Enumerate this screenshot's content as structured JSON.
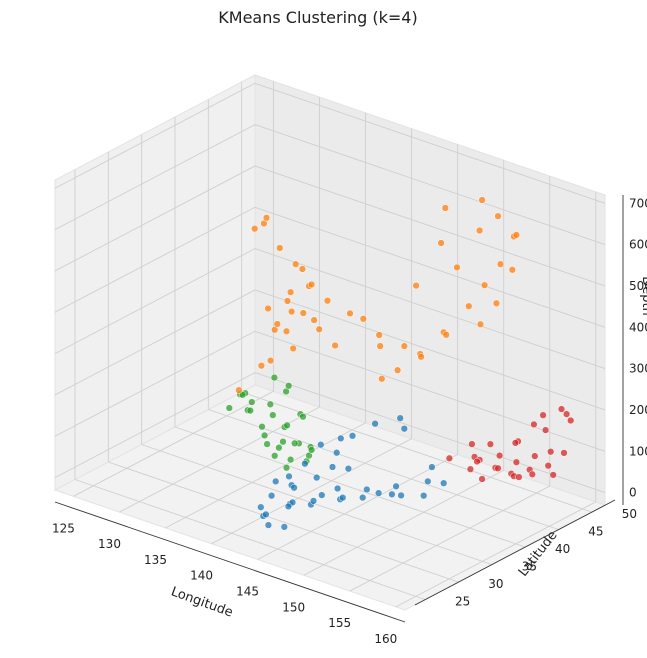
{
  "chart_data": {
    "type": "scatter",
    "projection": "3d",
    "title": "KMeans Clustering (k=4)",
    "xlabel": "Longitude",
    "ylabel": "Latitude",
    "zlabel": "Depth",
    "xlim": [
      123,
      161
    ],
    "ylim": [
      22,
      52
    ],
    "zlim": [
      -30,
      720
    ],
    "xticks": [
      125,
      130,
      135,
      140,
      145,
      150,
      155,
      160
    ],
    "yticks": [
      25,
      30,
      35,
      40,
      45,
      50
    ],
    "zticks": [
      0,
      100,
      200,
      300,
      400,
      500,
      600,
      700
    ],
    "grid": true,
    "series": [
      {
        "color": "#2ca02c",
        "points": [
          [
            125,
            47,
            5
          ],
          [
            127,
            46,
            10
          ],
          [
            128,
            44,
            15
          ],
          [
            126,
            44,
            5
          ],
          [
            129,
            46,
            20
          ],
          [
            130,
            45,
            10
          ],
          [
            132,
            44,
            5
          ],
          [
            133,
            43,
            25
          ],
          [
            131,
            42,
            15
          ],
          [
            134,
            41,
            10
          ],
          [
            135,
            42,
            5
          ],
          [
            136,
            40,
            30
          ],
          [
            137,
            41,
            20
          ],
          [
            138,
            39,
            10
          ],
          [
            139,
            38,
            40
          ],
          [
            136,
            37,
            25
          ],
          [
            133,
            45,
            35
          ],
          [
            130,
            47,
            50
          ],
          [
            128,
            48,
            60
          ],
          [
            131,
            46,
            80
          ],
          [
            134,
            44,
            45
          ],
          [
            137,
            38,
            15
          ],
          [
            135,
            39,
            20
          ],
          [
            132,
            41,
            10
          ],
          [
            129,
            43,
            30
          ],
          [
            127,
            45,
            40
          ],
          [
            126,
            46,
            20
          ],
          [
            133,
            40,
            5
          ],
          [
            138,
            36,
            20
          ],
          [
            140,
            37,
            70
          ]
        ]
      },
      {
        "color": "#1f77b4",
        "points": [
          [
            139,
            35,
            15
          ],
          [
            140,
            34,
            10
          ],
          [
            141,
            33,
            20
          ],
          [
            142,
            31,
            5
          ],
          [
            143,
            30,
            25
          ],
          [
            141,
            28,
            15
          ],
          [
            142,
            27,
            10
          ],
          [
            143,
            26,
            30
          ],
          [
            144,
            25,
            20
          ],
          [
            145,
            26,
            15
          ],
          [
            144,
            28,
            40
          ],
          [
            145,
            30,
            35
          ],
          [
            146,
            33,
            30
          ],
          [
            147,
            35,
            25
          ],
          [
            146,
            37,
            20
          ],
          [
            148,
            38,
            15
          ],
          [
            147,
            40,
            10
          ],
          [
            149,
            42,
            20
          ],
          [
            148,
            44,
            30
          ],
          [
            150,
            43,
            15
          ],
          [
            147,
            32,
            50
          ],
          [
            146,
            29,
            60
          ],
          [
            145,
            34,
            40
          ],
          [
            144,
            37,
            55
          ],
          [
            142,
            38,
            70
          ],
          [
            141,
            40,
            80
          ],
          [
            143,
            39,
            110
          ],
          [
            144,
            41,
            130
          ],
          [
            146,
            42,
            150
          ],
          [
            145,
            44,
            100
          ],
          [
            140,
            36,
            45
          ],
          [
            139,
            33,
            20
          ],
          [
            140,
            31,
            10
          ],
          [
            142,
            35,
            35
          ],
          [
            144,
            33,
            25
          ],
          [
            148,
            36,
            35
          ],
          [
            150,
            40,
            10
          ],
          [
            149,
            38,
            20
          ],
          [
            143,
            36,
            60
          ],
          [
            141,
            37,
            90
          ]
        ]
      },
      {
        "color": "#d62728",
        "points": [
          [
            147,
            48,
            10
          ],
          [
            149,
            49,
            20
          ],
          [
            150,
            47,
            15
          ],
          [
            151,
            50,
            30
          ],
          [
            152,
            48,
            25
          ],
          [
            153,
            49,
            10
          ],
          [
            154,
            48,
            20
          ],
          [
            155,
            49,
            35
          ],
          [
            156,
            48,
            40
          ],
          [
            157,
            49,
            60
          ],
          [
            158,
            50,
            90
          ],
          [
            158,
            48,
            110
          ],
          [
            159,
            47,
            70
          ],
          [
            157,
            47,
            100
          ],
          [
            156,
            50,
            130
          ],
          [
            155,
            51,
            150
          ],
          [
            153,
            50,
            80
          ],
          [
            152,
            51,
            60
          ],
          [
            151,
            47,
            45
          ],
          [
            150,
            50,
            50
          ],
          [
            148,
            50,
            35
          ],
          [
            155,
            47,
            70
          ],
          [
            154,
            51,
            120
          ],
          [
            157,
            51,
            180
          ],
          [
            159,
            49,
            200
          ],
          [
            158,
            51,
            160
          ],
          [
            153,
            47,
            40
          ],
          [
            156,
            46,
            50
          ],
          [
            150,
            48,
            25
          ],
          [
            152,
            46,
            15
          ]
        ]
      },
      {
        "color": "#ff7f0e",
        "points": [
          [
            136,
            37,
            330
          ],
          [
            137,
            36,
            360
          ],
          [
            138,
            37,
            300
          ],
          [
            136,
            35,
            260
          ],
          [
            137,
            35,
            280
          ],
          [
            138,
            36,
            350
          ],
          [
            136,
            36,
            390
          ],
          [
            137,
            38,
            420
          ],
          [
            139,
            38,
            450
          ],
          [
            139,
            37,
            500
          ],
          [
            138,
            35,
            560
          ],
          [
            137,
            34,
            620
          ],
          [
            138,
            33,
            650
          ],
          [
            136,
            34,
            600
          ],
          [
            139,
            36,
            520
          ],
          [
            140,
            37,
            470
          ],
          [
            141,
            38,
            430
          ],
          [
            142,
            40,
            390
          ],
          [
            142,
            42,
            360
          ],
          [
            143,
            43,
            320
          ],
          [
            145,
            44,
            300
          ],
          [
            146,
            45,
            280
          ],
          [
            145,
            43,
            250
          ],
          [
            144,
            42,
            230
          ],
          [
            141,
            36,
            400
          ],
          [
            140,
            34,
            430
          ],
          [
            141,
            32,
            480
          ],
          [
            142,
            33,
            450
          ],
          [
            143,
            34,
            410
          ],
          [
            144,
            35,
            370
          ],
          [
            146,
            39,
            350
          ],
          [
            149,
            41,
            330
          ],
          [
            150,
            43,
            380
          ],
          [
            152,
            44,
            450
          ],
          [
            153,
            45,
            500
          ],
          [
            154,
            46,
            550
          ],
          [
            154,
            48,
            600
          ],
          [
            153,
            47,
            650
          ],
          [
            152,
            46,
            690
          ],
          [
            155,
            47,
            620
          ],
          [
            156,
            45,
            560
          ],
          [
            155,
            44,
            480
          ],
          [
            154,
            43,
            430
          ],
          [
            151,
            42,
            390
          ],
          [
            150,
            45,
            520
          ],
          [
            149,
            44,
            580
          ],
          [
            148,
            46,
            640
          ],
          [
            151,
            47,
            600
          ],
          [
            147,
            43,
            470
          ],
          [
            135,
            33,
            210
          ]
        ]
      }
    ]
  }
}
